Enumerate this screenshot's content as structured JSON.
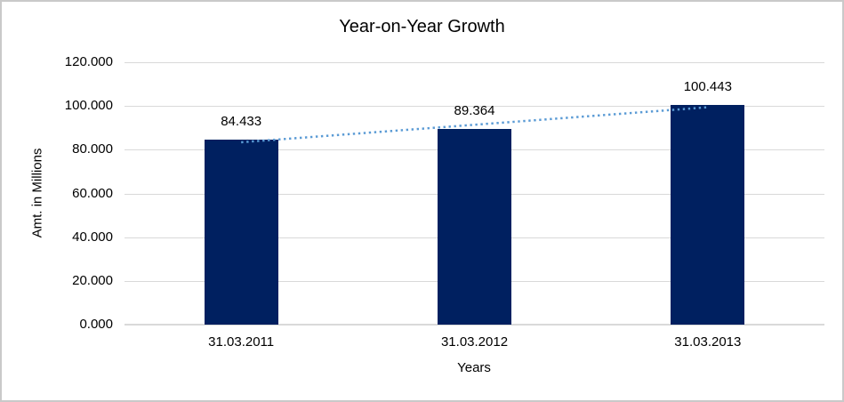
{
  "chart_data": {
    "type": "bar",
    "title": "Year-on-Year Growth",
    "categories": [
      "31.03.2011",
      "31.03.2012",
      "31.03.2013"
    ],
    "values": [
      84.433,
      89.364,
      100.443
    ],
    "data_labels": [
      "84.433",
      "89.364",
      "100.443"
    ],
    "xlabel": "Years",
    "ylabel": "Amt. in Millions",
    "ylim": [
      0,
      120
    ],
    "ytick_step": 20,
    "yticks": [
      {
        "value": 0,
        "label": "0.000"
      },
      {
        "value": 20,
        "label": "20.000"
      },
      {
        "value": 40,
        "label": "40.000"
      },
      {
        "value": 60,
        "label": "60.000"
      },
      {
        "value": 80,
        "label": "80.000"
      },
      {
        "value": 100,
        "label": "100.000"
      },
      {
        "value": 120,
        "label": "120.000"
      }
    ],
    "grid": true,
    "legend": "none",
    "bar_color": "#002060",
    "gridline_color": "#d9d9d9",
    "trendline": {
      "type": "linear",
      "style": "dotted",
      "color": "#5b9bd5"
    }
  }
}
